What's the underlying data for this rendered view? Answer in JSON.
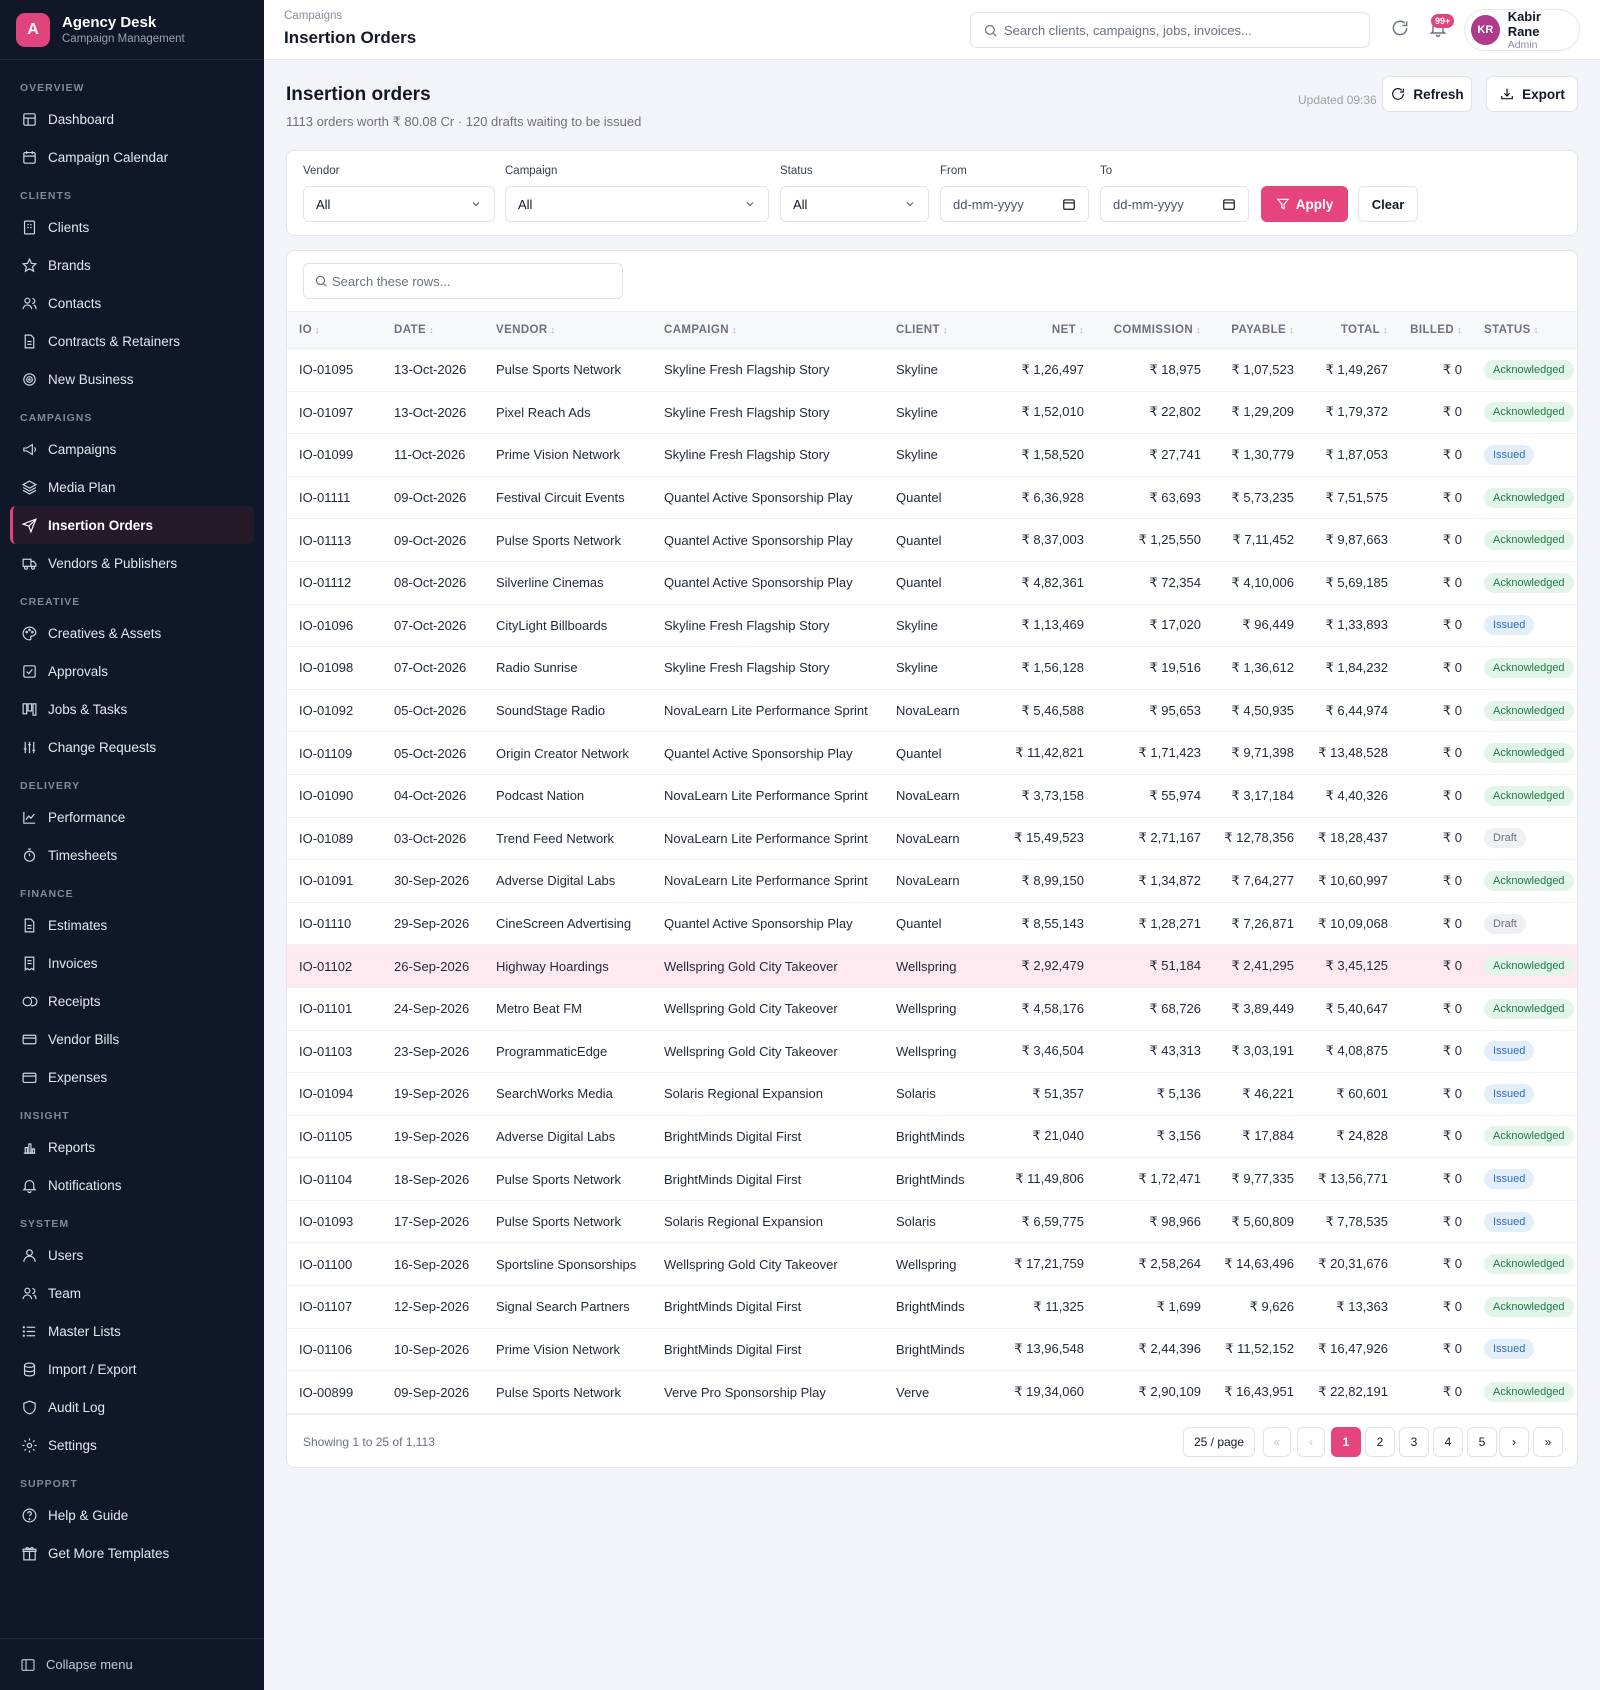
{
  "brand": {
    "logo_letter": "A",
    "name": "Agency Desk",
    "subtitle": "Campaign Management"
  },
  "sidebar": {
    "sections": [
      {
        "title": "OVERVIEW",
        "items": [
          {
            "label": "Dashboard",
            "icon": "grid-icon"
          },
          {
            "label": "Campaign Calendar",
            "icon": "calendar-icon"
          }
        ]
      },
      {
        "title": "CLIENTS",
        "items": [
          {
            "label": "Clients",
            "icon": "building-icon"
          },
          {
            "label": "Brands",
            "icon": "star-icon"
          },
          {
            "label": "Contacts",
            "icon": "users-icon"
          },
          {
            "label": "Contracts & Retainers",
            "icon": "document-icon"
          },
          {
            "label": "New Business",
            "icon": "target-icon"
          }
        ]
      },
      {
        "title": "CAMPAIGNS",
        "items": [
          {
            "label": "Campaigns",
            "icon": "megaphone-icon"
          },
          {
            "label": "Media Plan",
            "icon": "layers-icon"
          },
          {
            "label": "Insertion Orders",
            "icon": "send-icon",
            "active": true
          },
          {
            "label": "Vendors & Publishers",
            "icon": "truck-icon"
          }
        ]
      },
      {
        "title": "CREATIVE",
        "items": [
          {
            "label": "Creatives & Assets",
            "icon": "palette-icon"
          },
          {
            "label": "Approvals",
            "icon": "check-square-icon"
          },
          {
            "label": "Jobs & Tasks",
            "icon": "kanban-icon"
          },
          {
            "label": "Change Requests",
            "icon": "sliders-icon"
          }
        ]
      },
      {
        "title": "DELIVERY",
        "items": [
          {
            "label": "Performance",
            "icon": "line-chart-icon"
          },
          {
            "label": "Timesheets",
            "icon": "stopwatch-icon"
          }
        ]
      },
      {
        "title": "FINANCE",
        "items": [
          {
            "label": "Estimates",
            "icon": "document-icon"
          },
          {
            "label": "Invoices",
            "icon": "receipt-icon"
          },
          {
            "label": "Receipts",
            "icon": "coins-icon"
          },
          {
            "label": "Vendor Bills",
            "icon": "card-icon"
          },
          {
            "label": "Expenses",
            "icon": "wallet-icon"
          }
        ]
      },
      {
        "title": "INSIGHT",
        "items": [
          {
            "label": "Reports",
            "icon": "bar-chart-icon"
          },
          {
            "label": "Notifications",
            "icon": "bell-icon"
          }
        ]
      },
      {
        "title": "SYSTEM",
        "items": [
          {
            "label": "Users",
            "icon": "user-icon"
          },
          {
            "label": "Team",
            "icon": "users-icon"
          },
          {
            "label": "Master Lists",
            "icon": "list-icon"
          },
          {
            "label": "Import / Export",
            "icon": "database-icon"
          },
          {
            "label": "Audit Log",
            "icon": "shield-icon"
          },
          {
            "label": "Settings",
            "icon": "gear-icon"
          }
        ]
      },
      {
        "title": "SUPPORT",
        "items": [
          {
            "label": "Help & Guide",
            "icon": "help-icon"
          },
          {
            "label": "Get More Templates",
            "icon": "gift-icon"
          }
        ]
      }
    ],
    "collapse_label": "Collapse menu"
  },
  "topbar": {
    "breadcrumb": "Campaigns",
    "title": "Insertion Orders",
    "search_placeholder": "Search clients, campaigns, jobs, invoices...",
    "notification_badge": "99+",
    "user": {
      "initials": "KR",
      "name": "Kabir Rane",
      "role": "Admin"
    }
  },
  "page": {
    "heading": "Insertion orders",
    "summary": "1113 orders worth ₹ 80.08 Cr · 120 drafts waiting to be issued",
    "updated": "Updated 09:36",
    "refresh_label": "Refresh",
    "export_label": "Export"
  },
  "filters": {
    "vendor": {
      "label": "Vendor",
      "value": "All"
    },
    "campaign": {
      "label": "Campaign",
      "value": "All"
    },
    "status": {
      "label": "Status",
      "value": "All"
    },
    "from": {
      "label": "From",
      "value": "dd-mm-yyyy"
    },
    "to": {
      "label": "To",
      "value": "dd-mm-yyyy"
    },
    "apply_label": "Apply",
    "clear_label": "Clear"
  },
  "table": {
    "search_placeholder": "Search these rows...",
    "columns": [
      "IO",
      "DATE",
      "VENDOR",
      "CAMPAIGN",
      "CLIENT",
      "NET",
      "COMMISSION",
      "PAYABLE",
      "TOTAL",
      "BILLED",
      "STATUS"
    ],
    "rows": [
      [
        "IO-01095",
        "13-Oct-2026",
        "Pulse Sports Network",
        "Skyline Fresh Flagship Story",
        "Skyline",
        "₹ 1,26,497",
        "₹ 18,975",
        "₹ 1,07,523",
        "₹ 1,49,267",
        "₹ 0",
        "Acknowledged"
      ],
      [
        "IO-01097",
        "13-Oct-2026",
        "Pixel Reach Ads",
        "Skyline Fresh Flagship Story",
        "Skyline",
        "₹ 1,52,010",
        "₹ 22,802",
        "₹ 1,29,209",
        "₹ 1,79,372",
        "₹ 0",
        "Acknowledged"
      ],
      [
        "IO-01099",
        "11-Oct-2026",
        "Prime Vision Network",
        "Skyline Fresh Flagship Story",
        "Skyline",
        "₹ 1,58,520",
        "₹ 27,741",
        "₹ 1,30,779",
        "₹ 1,87,053",
        "₹ 0",
        "Issued"
      ],
      [
        "IO-01111",
        "09-Oct-2026",
        "Festival Circuit Events",
        "Quantel Active Sponsorship Play",
        "Quantel",
        "₹ 6,36,928",
        "₹ 63,693",
        "₹ 5,73,235",
        "₹ 7,51,575",
        "₹ 0",
        "Acknowledged"
      ],
      [
        "IO-01113",
        "09-Oct-2026",
        "Pulse Sports Network",
        "Quantel Active Sponsorship Play",
        "Quantel",
        "₹ 8,37,003",
        "₹ 1,25,550",
        "₹ 7,11,452",
        "₹ 9,87,663",
        "₹ 0",
        "Acknowledged"
      ],
      [
        "IO-01112",
        "08-Oct-2026",
        "Silverline Cinemas",
        "Quantel Active Sponsorship Play",
        "Quantel",
        "₹ 4,82,361",
        "₹ 72,354",
        "₹ 4,10,006",
        "₹ 5,69,185",
        "₹ 0",
        "Acknowledged"
      ],
      [
        "IO-01096",
        "07-Oct-2026",
        "CityLight Billboards",
        "Skyline Fresh Flagship Story",
        "Skyline",
        "₹ 1,13,469",
        "₹ 17,020",
        "₹ 96,449",
        "₹ 1,33,893",
        "₹ 0",
        "Issued"
      ],
      [
        "IO-01098",
        "07-Oct-2026",
        "Radio Sunrise",
        "Skyline Fresh Flagship Story",
        "Skyline",
        "₹ 1,56,128",
        "₹ 19,516",
        "₹ 1,36,612",
        "₹ 1,84,232",
        "₹ 0",
        "Acknowledged"
      ],
      [
        "IO-01092",
        "05-Oct-2026",
        "SoundStage Radio",
        "NovaLearn Lite Performance Sprint",
        "NovaLearn",
        "₹ 5,46,588",
        "₹ 95,653",
        "₹ 4,50,935",
        "₹ 6,44,974",
        "₹ 0",
        "Acknowledged"
      ],
      [
        "IO-01109",
        "05-Oct-2026",
        "Origin Creator Network",
        "Quantel Active Sponsorship Play",
        "Quantel",
        "₹ 11,42,821",
        "₹ 1,71,423",
        "₹ 9,71,398",
        "₹ 13,48,528",
        "₹ 0",
        "Acknowledged"
      ],
      [
        "IO-01090",
        "04-Oct-2026",
        "Podcast Nation",
        "NovaLearn Lite Performance Sprint",
        "NovaLearn",
        "₹ 3,73,158",
        "₹ 55,974",
        "₹ 3,17,184",
        "₹ 4,40,326",
        "₹ 0",
        "Acknowledged"
      ],
      [
        "IO-01089",
        "03-Oct-2026",
        "Trend Feed Network",
        "NovaLearn Lite Performance Sprint",
        "NovaLearn",
        "₹ 15,49,523",
        "₹ 2,71,167",
        "₹ 12,78,356",
        "₹ 18,28,437",
        "₹ 0",
        "Draft"
      ],
      [
        "IO-01091",
        "30-Sep-2026",
        "Adverse Digital Labs",
        "NovaLearn Lite Performance Sprint",
        "NovaLearn",
        "₹ 8,99,150",
        "₹ 1,34,872",
        "₹ 7,64,277",
        "₹ 10,60,997",
        "₹ 0",
        "Acknowledged"
      ],
      [
        "IO-01110",
        "29-Sep-2026",
        "CineScreen Advertising",
        "Quantel Active Sponsorship Play",
        "Quantel",
        "₹ 8,55,143",
        "₹ 1,28,271",
        "₹ 7,26,871",
        "₹ 10,09,068",
        "₹ 0",
        "Draft"
      ],
      [
        "IO-01102",
        "26-Sep-2026",
        "Highway Hoardings",
        "Wellspring Gold City Takeover",
        "Wellspring",
        "₹ 2,92,479",
        "₹ 51,184",
        "₹ 2,41,295",
        "₹ 3,45,125",
        "₹ 0",
        "Acknowledged"
      ],
      [
        "IO-01101",
        "24-Sep-2026",
        "Metro Beat FM",
        "Wellspring Gold City Takeover",
        "Wellspring",
        "₹ 4,58,176",
        "₹ 68,726",
        "₹ 3,89,449",
        "₹ 5,40,647",
        "₹ 0",
        "Acknowledged"
      ],
      [
        "IO-01103",
        "23-Sep-2026",
        "ProgrammaticEdge",
        "Wellspring Gold City Takeover",
        "Wellspring",
        "₹ 3,46,504",
        "₹ 43,313",
        "₹ 3,03,191",
        "₹ 4,08,875",
        "₹ 0",
        "Issued"
      ],
      [
        "IO-01094",
        "19-Sep-2026",
        "SearchWorks Media",
        "Solaris Regional Expansion",
        "Solaris",
        "₹ 51,357",
        "₹ 5,136",
        "₹ 46,221",
        "₹ 60,601",
        "₹ 0",
        "Issued"
      ],
      [
        "IO-01105",
        "19-Sep-2026",
        "Adverse Digital Labs",
        "BrightMinds Digital First",
        "BrightMinds",
        "₹ 21,040",
        "₹ 3,156",
        "₹ 17,884",
        "₹ 24,828",
        "₹ 0",
        "Acknowledged"
      ],
      [
        "IO-01104",
        "18-Sep-2026",
        "Pulse Sports Network",
        "BrightMinds Digital First",
        "BrightMinds",
        "₹ 11,49,806",
        "₹ 1,72,471",
        "₹ 9,77,335",
        "₹ 13,56,771",
        "₹ 0",
        "Issued"
      ],
      [
        "IO-01093",
        "17-Sep-2026",
        "Pulse Sports Network",
        "Solaris Regional Expansion",
        "Solaris",
        "₹ 6,59,775",
        "₹ 98,966",
        "₹ 5,60,809",
        "₹ 7,78,535",
        "₹ 0",
        "Issued"
      ],
      [
        "IO-01100",
        "16-Sep-2026",
        "Sportsline Sponsorships",
        "Wellspring Gold City Takeover",
        "Wellspring",
        "₹ 17,21,759",
        "₹ 2,58,264",
        "₹ 14,63,496",
        "₹ 20,31,676",
        "₹ 0",
        "Acknowledged"
      ],
      [
        "IO-01107",
        "12-Sep-2026",
        "Signal Search Partners",
        "BrightMinds Digital First",
        "BrightMinds",
        "₹ 11,325",
        "₹ 1,699",
        "₹ 9,626",
        "₹ 13,363",
        "₹ 0",
        "Acknowledged"
      ],
      [
        "IO-01106",
        "10-Sep-2026",
        "Prime Vision Network",
        "BrightMinds Digital First",
        "BrightMinds",
        "₹ 13,96,548",
        "₹ 2,44,396",
        "₹ 11,52,152",
        "₹ 16,47,926",
        "₹ 0",
        "Issued"
      ],
      [
        "IO-00899",
        "09-Sep-2026",
        "Pulse Sports Network",
        "Verve Pro Sponsorship Play",
        "Verve",
        "₹ 19,34,060",
        "₹ 2,90,109",
        "₹ 16,43,951",
        "₹ 22,82,191",
        "₹ 0",
        "Acknowledged"
      ]
    ],
    "highlighted_row": "IO-01102"
  },
  "pagination": {
    "showing": "Showing 1 to 25 of 1,113",
    "per_page": "25 / page",
    "first": "«",
    "prev": "‹",
    "next": "›",
    "last": "»",
    "pages": [
      "1",
      "2",
      "3",
      "4",
      "5"
    ],
    "current": "1"
  },
  "colors": {
    "accent": "#e5447c",
    "sidebar_bg": "#101728",
    "acknowledged": "#1f7a45",
    "issued": "#2f6db5",
    "draft": "#6b7280"
  }
}
